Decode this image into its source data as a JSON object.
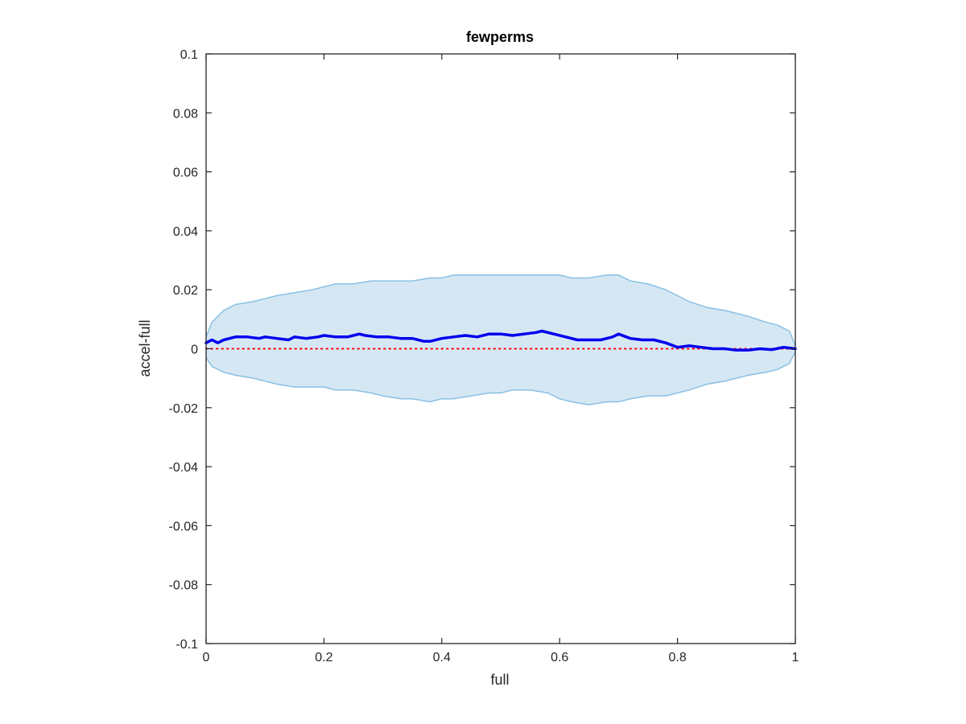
{
  "chart_data": {
    "type": "line",
    "title": "fewperms",
    "xlabel": "full",
    "ylabel": "accel-full",
    "xlim": [
      0,
      1
    ],
    "ylim": [
      -0.1,
      0.1
    ],
    "grid": false,
    "x_ticks": [
      "0",
      "0.2",
      "0.4",
      "0.6",
      "0.8",
      "1"
    ],
    "x_tick_values": [
      0,
      0.2,
      0.4,
      0.6,
      0.8,
      1
    ],
    "y_ticks": [
      "0.1",
      "0.08",
      "0.06",
      "0.04",
      "0.02",
      "0",
      "-0.02",
      "-0.04",
      "-0.06",
      "-0.08",
      "-0.1"
    ],
    "y_tick_values": [
      0.1,
      0.08,
      0.06,
      0.04,
      0.02,
      0,
      -0.02,
      -0.04,
      -0.06,
      -0.08,
      -0.1
    ],
    "band": {
      "x": [
        0,
        0.01,
        0.03,
        0.05,
        0.08,
        0.1,
        0.12,
        0.15,
        0.18,
        0.2,
        0.22,
        0.25,
        0.28,
        0.3,
        0.33,
        0.35,
        0.38,
        0.4,
        0.42,
        0.45,
        0.48,
        0.5,
        0.52,
        0.55,
        0.58,
        0.6,
        0.62,
        0.65,
        0.68,
        0.7,
        0.72,
        0.75,
        0.78,
        0.8,
        0.82,
        0.85,
        0.88,
        0.9,
        0.92,
        0.95,
        0.97,
        0.99,
        1
      ],
      "upper": [
        0.004,
        0.009,
        0.013,
        0.015,
        0.016,
        0.017,
        0.018,
        0.019,
        0.02,
        0.021,
        0.022,
        0.022,
        0.023,
        0.023,
        0.023,
        0.023,
        0.024,
        0.024,
        0.025,
        0.025,
        0.025,
        0.025,
        0.025,
        0.025,
        0.025,
        0.025,
        0.024,
        0.024,
        0.025,
        0.025,
        0.023,
        0.022,
        0.02,
        0.018,
        0.016,
        0.014,
        0.013,
        0.012,
        0.011,
        0.009,
        0.008,
        0.006,
        0.001
      ],
      "lower": [
        -0.003,
        -0.006,
        -0.008,
        -0.009,
        -0.01,
        -0.011,
        -0.012,
        -0.013,
        -0.013,
        -0.013,
        -0.014,
        -0.014,
        -0.015,
        -0.016,
        -0.017,
        -0.017,
        -0.018,
        -0.017,
        -0.017,
        -0.016,
        -0.015,
        -0.015,
        -0.014,
        -0.014,
        -0.015,
        -0.017,
        -0.018,
        -0.019,
        -0.018,
        -0.018,
        -0.017,
        -0.016,
        -0.016,
        -0.015,
        -0.014,
        -0.012,
        -0.011,
        -0.01,
        -0.009,
        -0.008,
        -0.007,
        -0.005,
        -0.001
      ]
    },
    "series": [
      {
        "x": [
          0,
          0.01,
          0.02,
          0.03,
          0.05,
          0.07,
          0.09,
          0.1,
          0.12,
          0.14,
          0.15,
          0.17,
          0.19,
          0.2,
          0.22,
          0.24,
          0.26,
          0.27,
          0.29,
          0.31,
          0.33,
          0.35,
          0.37,
          0.38,
          0.4,
          0.42,
          0.44,
          0.46,
          0.48,
          0.5,
          0.52,
          0.54,
          0.56,
          0.57,
          0.59,
          0.61,
          0.63,
          0.65,
          0.67,
          0.69,
          0.7,
          0.72,
          0.74,
          0.76,
          0.78,
          0.8,
          0.82,
          0.84,
          0.86,
          0.88,
          0.9,
          0.92,
          0.94,
          0.96,
          0.98,
          1
        ],
        "y": [
          0.002,
          0.003,
          0.002,
          0.003,
          0.004,
          0.004,
          0.0035,
          0.004,
          0.0035,
          0.003,
          0.004,
          0.0035,
          0.004,
          0.0045,
          0.004,
          0.004,
          0.005,
          0.0045,
          0.004,
          0.004,
          0.0035,
          0.0035,
          0.0025,
          0.0025,
          0.0035,
          0.004,
          0.0045,
          0.004,
          0.005,
          0.005,
          0.0045,
          0.005,
          0.0055,
          0.006,
          0.005,
          0.004,
          0.003,
          0.003,
          0.003,
          0.004,
          0.005,
          0.0035,
          0.003,
          0.003,
          0.002,
          0.0005,
          0.001,
          0.0005,
          0,
          0,
          -0.0005,
          -0.0005,
          0,
          -0.0003,
          0.0005,
          0
        ]
      }
    ],
    "reference_line": {
      "y": 0
    },
    "colors": {
      "band_fill": "#d6e7f4",
      "band_edge": "#89c0e3",
      "series": "#0000ee",
      "reference": "#ff0000",
      "axes": "#262626"
    }
  }
}
